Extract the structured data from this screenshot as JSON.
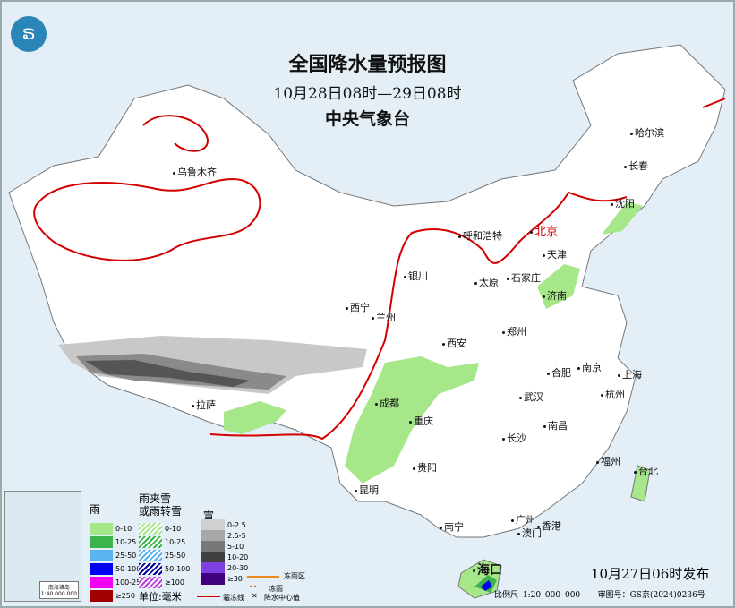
{
  "map": {
    "title": "全国降水量预报图",
    "period": "10月28日08时—29日08时",
    "issuer": "中央气象台",
    "issued": "10月27日06时发布",
    "scale": "比例尺 1:20 000 000",
    "review_no": "审图号：GS京(2024)0236号",
    "logo_icon": "cma-logo",
    "colors": {
      "sea": "#e3eef6",
      "land": "#ffffff",
      "frost_line": "#d40000",
      "rain_light": "#a6e78a",
      "snow_light": "#c8c8c8",
      "snow_mid": "#a0a0a0",
      "snow_heavy": "#606060"
    }
  },
  "cities": [
    "乌鲁木齐",
    "哈尔滨",
    "长春",
    "沈阳",
    "呼和浩特",
    "北京",
    "天津",
    "石家庄",
    "太原",
    "济南",
    "银川",
    "西宁",
    "兰州",
    "郑州",
    "西安",
    "合肥",
    "南京",
    "上海",
    "武汉",
    "杭州",
    "成都",
    "重庆",
    "长沙",
    "南昌",
    "拉萨",
    "贵阳",
    "福州",
    "台北",
    "昆明",
    "南宁",
    "广州",
    "澳门",
    "香港",
    "海口"
  ],
  "inset": {
    "title": "南海诸岛",
    "scale": "1:40 000 000"
  },
  "legend": {
    "rain": {
      "title": "雨",
      "items": [
        {
          "label": "0-10",
          "color": "#a6e78a"
        },
        {
          "label": "10-25",
          "color": "#3cb44b"
        },
        {
          "label": "25-50",
          "color": "#5ab4f0"
        },
        {
          "label": "50-100",
          "color": "#0000f0"
        },
        {
          "label": "100-250",
          "color": "#f000f0"
        },
        {
          "label": "≥250",
          "color": "#a00000"
        }
      ]
    },
    "sleet": {
      "title": "雨夹雪\n或雨转雪",
      "title1": "雨夹雪",
      "title2": "或雨转雪",
      "items": [
        {
          "label": "0-10",
          "color": "#a6e78a"
        },
        {
          "label": "10-25",
          "color": "#3cb44b"
        },
        {
          "label": "25-50",
          "color": "#5ab4f0"
        },
        {
          "label": "50-100",
          "color": "#0000a0"
        },
        {
          "label": "≥100",
          "color": "#c040e0"
        }
      ]
    },
    "snow": {
      "title": "雪",
      "items": [
        {
          "label": "0-2.5",
          "color": "#d0d0d0"
        },
        {
          "label": "2.5-5",
          "color": "#a8a8a8"
        },
        {
          "label": "5-10",
          "color": "#787878"
        },
        {
          "label": "10-20",
          "color": "#404040"
        },
        {
          "label": "20-30",
          "color": "#8040e0"
        },
        {
          "label": "≥30",
          "color": "#400080"
        }
      ]
    },
    "unit": "单位:毫米",
    "freezing_rain_area": "冻雨区",
    "freezing_rain": "冻雨",
    "frost_line": "霜冻线",
    "center_value": "降水中心值"
  }
}
